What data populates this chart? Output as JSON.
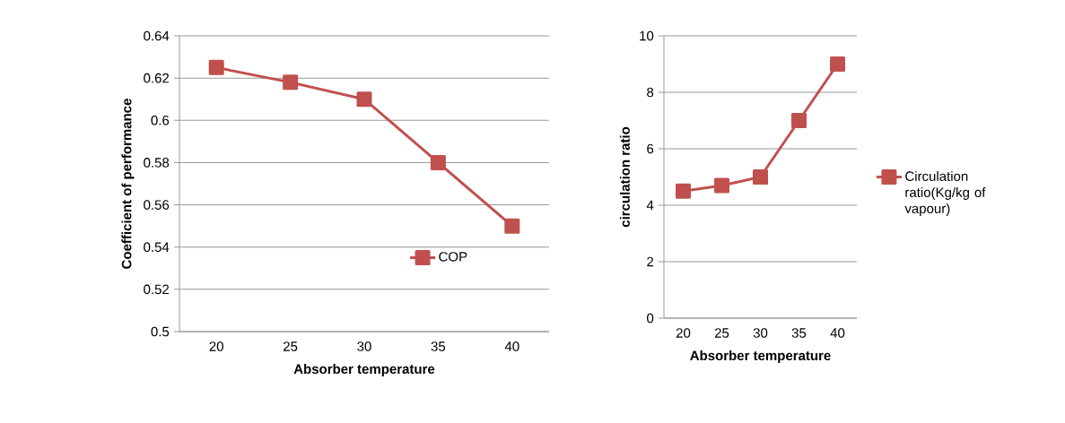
{
  "chart_data": [
    {
      "type": "line",
      "xlabel": "Absorber temperature",
      "ylabel": "Coefficient of performance",
      "categories": [
        "20",
        "25",
        "30",
        "35",
        "40"
      ],
      "series": [
        {
          "name": "COP",
          "color": "#c0504d",
          "values": [
            0.625,
            0.618,
            0.61,
            0.58,
            0.55
          ]
        }
      ],
      "ylim": [
        0.5,
        0.64
      ],
      "yticks": [
        0.5,
        0.52,
        0.54,
        0.56,
        0.58,
        0.6,
        0.62,
        0.64
      ],
      "grid": "y",
      "legend": "right",
      "marker": "square",
      "line_style": "solid"
    },
    {
      "type": "line",
      "xlabel": "Absorber temperature",
      "ylabel": "circulation ratio",
      "categories": [
        "20",
        "25",
        "30",
        "35",
        "40"
      ],
      "series": [
        {
          "name": "Circulation ratio(Kg/kg of vapour)",
          "color": "#c0504d",
          "values": [
            4.5,
            4.7,
            5,
            7,
            9
          ]
        }
      ],
      "ylim": [
        0,
        10
      ],
      "yticks": [
        0,
        2,
        4,
        6,
        8,
        10
      ],
      "grid": "y",
      "legend": "right",
      "marker": "square",
      "line_style": "solid"
    }
  ]
}
